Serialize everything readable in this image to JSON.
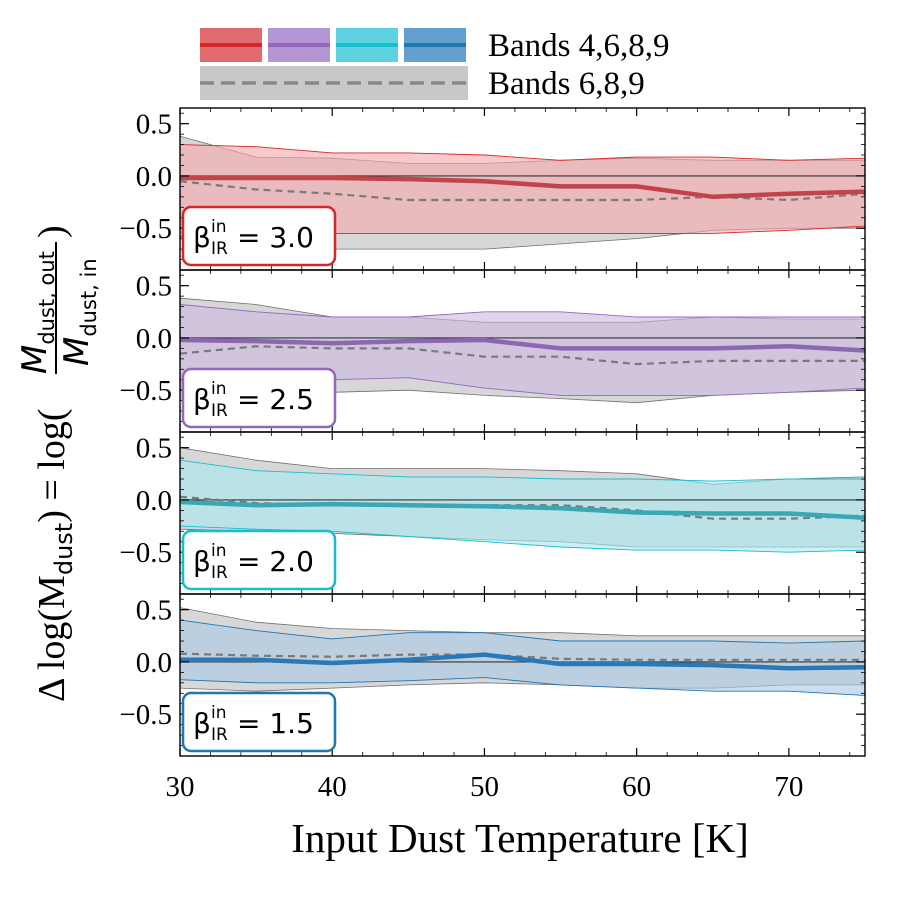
{
  "chart_data": {
    "type": "area",
    "xlabel": "Input Dust Temperature [K]",
    "ylabel": {
      "main": "Δ log(M",
      "main_sub": "dust",
      "main_close": ") = log(",
      "numer": "M",
      "numer_sub": "dust, out",
      "denom": "M",
      "denom_sub": "dust, in",
      "close": ")"
    },
    "xlim": [
      30,
      75
    ],
    "ylim": [
      -0.9,
      0.65
    ],
    "xticks": [
      30,
      40,
      50,
      60,
      70
    ],
    "yticks": [
      0.5,
      0.0,
      -0.5
    ],
    "ytick_labels": [
      "0.5",
      "0.0",
      "−0.5"
    ],
    "legend": [
      {
        "label": "Bands 4,6,8,9",
        "colors": [
          "#d62728",
          "#9467bd",
          "#17becf",
          "#1f77b4"
        ],
        "style": "solid"
      },
      {
        "label": "Bands 6,8,9",
        "colors": [
          "#808080"
        ],
        "style": "dashed"
      }
    ],
    "x": [
      30,
      35,
      40,
      45,
      50,
      55,
      60,
      65,
      70,
      75
    ],
    "panels": [
      {
        "beta_symbol": "β",
        "beta_sup": "in",
        "beta_sub": "IR",
        "beta_value": "= 3.0",
        "color": "#d62728",
        "median_color": "#c0444a",
        "fill_color": "#f4a9ad",
        "median_4689": [
          -0.02,
          -0.02,
          -0.02,
          -0.03,
          -0.05,
          -0.1,
          -0.1,
          -0.2,
          -0.17,
          -0.15
        ],
        "lower_4689": [
          -0.58,
          -0.55,
          -0.55,
          -0.55,
          -0.55,
          -0.55,
          -0.55,
          -0.55,
          -0.52,
          -0.48
        ],
        "upper_4689": [
          0.3,
          0.28,
          0.22,
          0.22,
          0.2,
          0.15,
          0.18,
          0.18,
          0.15,
          0.17
        ],
        "median_689": [
          -0.05,
          -0.13,
          -0.17,
          -0.23,
          -0.23,
          -0.23,
          -0.23,
          -0.2,
          -0.23,
          -0.17
        ],
        "lower_689": [
          -0.6,
          -0.68,
          -0.7,
          -0.7,
          -0.7,
          -0.65,
          -0.6,
          -0.52,
          -0.5,
          -0.5
        ],
        "upper_689": [
          0.38,
          0.18,
          0.17,
          0.12,
          0.12,
          0.15,
          0.17,
          0.15,
          0.15,
          0.15
        ]
      },
      {
        "beta_symbol": "β",
        "beta_sup": "in",
        "beta_sub": "IR",
        "beta_value": "= 2.5",
        "color": "#9467bd",
        "median_color": "#8a68b0",
        "fill_color": "#cdb8e0",
        "median_4689": [
          -0.02,
          -0.03,
          -0.05,
          -0.03,
          -0.02,
          -0.1,
          -0.1,
          -0.1,
          -0.08,
          -0.12
        ],
        "lower_4689": [
          -0.5,
          -0.45,
          -0.4,
          -0.38,
          -0.48,
          -0.55,
          -0.55,
          -0.55,
          -0.52,
          -0.48
        ],
        "upper_4689": [
          0.32,
          0.25,
          0.2,
          0.2,
          0.25,
          0.25,
          0.2,
          0.2,
          0.2,
          0.2
        ],
        "median_689": [
          -0.15,
          -0.08,
          -0.1,
          -0.1,
          -0.18,
          -0.18,
          -0.25,
          -0.22,
          -0.22,
          -0.22
        ],
        "lower_689": [
          -0.6,
          -0.52,
          -0.52,
          -0.5,
          -0.55,
          -0.58,
          -0.62,
          -0.55,
          -0.52,
          -0.5
        ],
        "upper_689": [
          0.38,
          0.32,
          0.2,
          0.2,
          0.15,
          0.15,
          0.15,
          0.2,
          0.18,
          0.18
        ]
      },
      {
        "beta_symbol": "β",
        "beta_sup": "in",
        "beta_sub": "IR",
        "beta_value": "= 2.0",
        "color": "#17becf",
        "median_color": "#3aa7b3",
        "fill_color": "#a9e8ef",
        "median_4689": [
          -0.02,
          -0.05,
          -0.04,
          -0.05,
          -0.06,
          -0.08,
          -0.12,
          -0.13,
          -0.13,
          -0.17
        ],
        "lower_4689": [
          -0.25,
          -0.28,
          -0.3,
          -0.35,
          -0.4,
          -0.45,
          -0.48,
          -0.48,
          -0.5,
          -0.48
        ],
        "upper_4689": [
          0.38,
          0.28,
          0.25,
          0.22,
          0.22,
          0.2,
          0.2,
          0.18,
          0.2,
          0.2
        ],
        "median_689": [
          0.03,
          -0.03,
          -0.05,
          -0.05,
          -0.05,
          -0.05,
          -0.1,
          -0.18,
          -0.18,
          -0.15
        ],
        "lower_689": [
          -0.28,
          -0.3,
          -0.32,
          -0.35,
          -0.38,
          -0.4,
          -0.45,
          -0.45,
          -0.45,
          -0.45
        ],
        "upper_689": [
          0.5,
          0.38,
          0.3,
          0.3,
          0.3,
          0.28,
          0.25,
          0.15,
          0.2,
          0.22
        ]
      },
      {
        "beta_symbol": "β",
        "beta_sup": "in",
        "beta_sub": "IR",
        "beta_value": "= 1.5",
        "color": "#1f77b4",
        "median_color": "#2a78b5",
        "fill_color": "#a9c9e5",
        "median_4689": [
          0.02,
          0.02,
          -0.01,
          0.02,
          0.07,
          -0.02,
          -0.02,
          -0.03,
          -0.06,
          -0.05
        ],
        "lower_4689": [
          -0.17,
          -0.2,
          -0.2,
          -0.18,
          -0.15,
          -0.22,
          -0.25,
          -0.28,
          -0.28,
          -0.32
        ],
        "upper_4689": [
          0.4,
          0.3,
          0.22,
          0.28,
          0.28,
          0.2,
          0.2,
          0.2,
          0.18,
          0.2
        ],
        "median_689": [
          0.08,
          0.06,
          0.05,
          0.07,
          0.07,
          0.03,
          0.02,
          0.02,
          0.02,
          0.02
        ],
        "lower_689": [
          -0.25,
          -0.28,
          -0.25,
          -0.22,
          -0.2,
          -0.22,
          -0.25,
          -0.25,
          -0.22,
          -0.22
        ],
        "upper_689": [
          0.52,
          0.38,
          0.32,
          0.3,
          0.28,
          0.28,
          0.25,
          0.25,
          0.25,
          0.25
        ]
      }
    ]
  }
}
